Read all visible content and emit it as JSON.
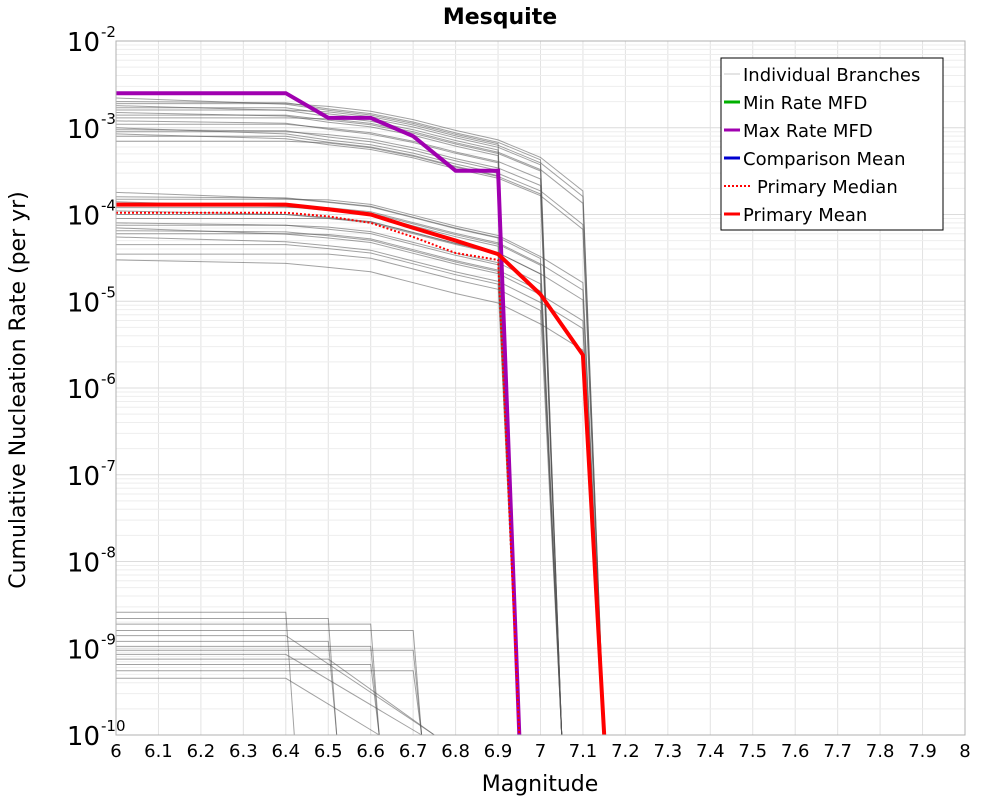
{
  "chart_data": {
    "type": "line",
    "title": "Mesquite",
    "xlabel": "Magnitude",
    "ylabel": "Cumulative Nucleation Rate (per yr)",
    "xlim": [
      6,
      8
    ],
    "ylim": [
      1e-10,
      0.01
    ],
    "yscale": "log",
    "grid": true,
    "legend_position": "top-right",
    "x_ticks": [
      "6",
      "6.1",
      "6.2",
      "6.3",
      "6.4",
      "6.5",
      "6.6",
      "6.7",
      "6.8",
      "6.9",
      "7",
      "7.1",
      "7.2",
      "7.3",
      "7.4",
      "7.5",
      "7.6",
      "7.7",
      "7.8",
      "7.9",
      "8"
    ],
    "y_ticks": [
      {
        "base": "10",
        "exp": "-2"
      },
      {
        "base": "10",
        "exp": "-3"
      },
      {
        "base": "10",
        "exp": "-4"
      },
      {
        "base": "10",
        "exp": "-5"
      },
      {
        "base": "10",
        "exp": "-6"
      },
      {
        "base": "10",
        "exp": "-7"
      },
      {
        "base": "10",
        "exp": "-8"
      },
      {
        "base": "10",
        "exp": "-9"
      },
      {
        "base": "10",
        "exp": "-10"
      }
    ],
    "legend": [
      {
        "label": "Individual Branches",
        "color": "#c8c8c8",
        "style": "solid"
      },
      {
        "label": "Min Rate MFD",
        "color": "#00b000",
        "style": "solid"
      },
      {
        "label": "Max Rate MFD",
        "color": "#a000b0",
        "style": "solid"
      },
      {
        "label": "Comparison Mean",
        "color": "#0000d0",
        "style": "solid"
      },
      {
        "label": "Primary Median",
        "color": "#ff0000",
        "style": "dotted"
      },
      {
        "label": "Primary Mean",
        "color": "#ff0000",
        "style": "solid"
      }
    ],
    "series": [
      {
        "name": "Max Rate MFD",
        "color": "#a000b0",
        "x": [
          6.0,
          6.4,
          6.5,
          6.6,
          6.7,
          6.8,
          6.9,
          6.95
        ],
        "y": [
          0.0025,
          0.0025,
          0.0013,
          0.0013,
          0.0008,
          0.00032,
          0.00032,
          1e-10
        ]
      },
      {
        "name": "Primary Median",
        "color": "#ff0000",
        "x": [
          6.0,
          6.4,
          6.5,
          6.6,
          6.7,
          6.8,
          6.9,
          6.95
        ],
        "y": [
          0.000105,
          0.000105,
          9.5e-05,
          8e-05,
          5.5e-05,
          3.6e-05,
          3e-05,
          1e-10
        ]
      },
      {
        "name": "Primary Mean",
        "color": "#ff0000",
        "x": [
          6.0,
          6.4,
          6.5,
          6.6,
          6.7,
          6.8,
          6.9,
          7.0,
          7.1,
          7.15
        ],
        "y": [
          0.00013,
          0.00013,
          0.000115,
          0.0001,
          7e-05,
          5e-05,
          3.5e-05,
          1.2e-05,
          2.4e-06,
          1e-10
        ]
      }
    ],
    "branch_groups": {
      "color": "#555555",
      "high": {
        "base_values": [
          0.0022,
          0.002,
          0.0019,
          0.0018,
          0.0017,
          0.0016,
          0.0015,
          0.0014,
          0.0013,
          0.0012,
          0.0011,
          0.001,
          0.00095,
          0.0009,
          0.00085,
          0.0008,
          0.0007
        ],
        "step_x": [
          6.4,
          6.5,
          6.6,
          6.7,
          6.8,
          6.9,
          7.0,
          7.1
        ],
        "step_factors": [
          1.0,
          0.85,
          0.75,
          0.6,
          0.45,
          0.35,
          0.22,
          0.09
        ],
        "drop_x": [
          6.95,
          7.05,
          7.15
        ]
      },
      "mid": {
        "base_values": [
          0.00018,
          0.00016,
          0.00015,
          0.00014,
          0.00013,
          0.00012,
          0.00011,
          0.0001,
          9e-05,
          8e-05,
          7.5e-05,
          7e-05,
          6.5e-05,
          6e-05,
          5.5e-05,
          4.5e-05,
          3.5e-05,
          3e-05
        ],
        "step_x": [
          6.4,
          6.5,
          6.6,
          6.7,
          6.8,
          6.9,
          7.0,
          7.1
        ],
        "step_factors": [
          1.0,
          0.9,
          0.8,
          0.6,
          0.45,
          0.35,
          0.2,
          0.1
        ],
        "drop_x": [
          6.95,
          7.05,
          7.15
        ]
      },
      "low": {
        "base_values": [
          2.6e-09,
          2.2e-09,
          1.9e-09,
          1.6e-09,
          1.4e-09,
          1.2e-09,
          1.05e-09,
          9.5e-10,
          8.5e-10,
          7.5e-10,
          6.5e-10,
          5.5e-10,
          4.5e-10
        ],
        "cut_x": [
          6.4,
          6.5,
          6.6,
          6.7
        ],
        "drop_x": [
          6.42,
          6.52,
          6.62,
          6.72,
          6.75
        ]
      }
    }
  }
}
